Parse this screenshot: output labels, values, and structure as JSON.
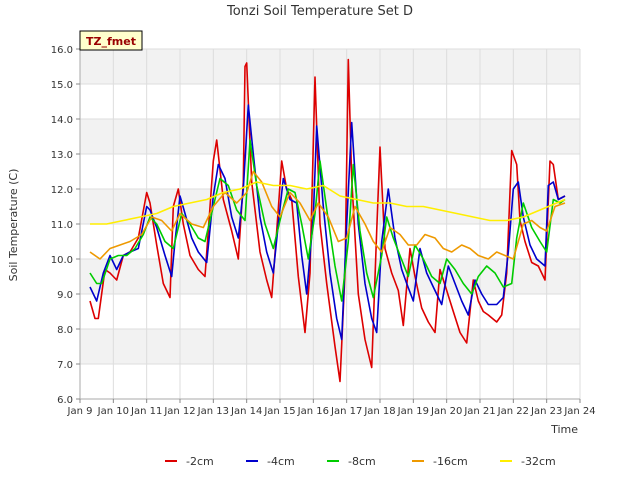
{
  "chart_data": {
    "type": "line",
    "title": "Tonzi Soil Temperature Set D",
    "xlabel": "Time",
    "ylabel": "Soil Temperature (C)",
    "badge": "TZ_fmet",
    "xlim": [
      9,
      24
    ],
    "ylim": [
      6.0,
      16.0
    ],
    "x_ticks": [
      9,
      10,
      11,
      12,
      13,
      14,
      15,
      16,
      17,
      18,
      19,
      20,
      21,
      22,
      23,
      24
    ],
    "x_tick_labels": [
      "Jan 9",
      "Jan 10",
      "Jan 11",
      "Jan 12",
      "Jan 13",
      "Jan 14",
      "Jan 15",
      "Jan 16",
      "Jan 17",
      "Jan 18",
      "Jan 19",
      "Jan 20",
      "Jan 21",
      "Jan 22",
      "Jan 23",
      "Jan 24"
    ],
    "y_ticks": [
      6,
      7,
      8,
      9,
      10,
      11,
      12,
      13,
      14,
      15,
      16
    ],
    "y_tick_labels": [
      "6.0",
      "7.0",
      "8.0",
      "9.0",
      "10.0",
      "11.0",
      "12.0",
      "13.0",
      "14.0",
      "15.0",
      "16.0"
    ],
    "legend_position": "bottom",
    "series": [
      {
        "name": "-2cm",
        "color": "#dd0000",
        "x": [
          9.3,
          9.45,
          9.55,
          9.75,
          9.9,
          10.1,
          10.3,
          10.5,
          10.75,
          11.0,
          11.1,
          11.3,
          11.5,
          11.7,
          11.8,
          11.95,
          12.1,
          12.3,
          12.55,
          12.75,
          13.0,
          13.1,
          13.3,
          13.55,
          13.75,
          13.9,
          13.95,
          14.0,
          14.15,
          14.4,
          14.6,
          14.75,
          14.9,
          15.05,
          15.2,
          15.35,
          15.55,
          15.75,
          15.9,
          16.05,
          16.2,
          16.4,
          16.65,
          16.8,
          16.95,
          17.05,
          17.15,
          17.35,
          17.55,
          17.75,
          17.9,
          18.0,
          18.15,
          18.35,
          18.55,
          18.7,
          18.9,
          19.05,
          19.25,
          19.45,
          19.65,
          19.8,
          20.0,
          20.2,
          20.4,
          20.6,
          20.8,
          20.95,
          21.1,
          21.25,
          21.5,
          21.65,
          21.8,
          21.95,
          22.1,
          22.2,
          22.35,
          22.55,
          22.75,
          22.95,
          23.1,
          23.2,
          23.35,
          23.55
        ],
        "values": [
          8.8,
          8.3,
          8.3,
          9.7,
          9.6,
          9.4,
          10.1,
          10.2,
          10.6,
          11.9,
          11.6,
          10.4,
          9.3,
          8.9,
          11.5,
          12.0,
          11.0,
          10.1,
          9.7,
          9.5,
          12.8,
          13.4,
          11.7,
          10.8,
          10.0,
          12.2,
          15.5,
          15.6,
          12.2,
          10.2,
          9.4,
          8.9,
          10.8,
          12.8,
          12.0,
          11.7,
          9.5,
          7.9,
          9.6,
          15.2,
          11.0,
          9.3,
          7.5,
          6.5,
          9.6,
          15.7,
          12.3,
          9.0,
          7.7,
          6.9,
          10.8,
          13.2,
          10.3,
          9.6,
          9.1,
          8.1,
          10.3,
          9.5,
          8.6,
          8.2,
          7.9,
          9.7,
          9.1,
          8.5,
          7.9,
          7.6,
          9.4,
          8.8,
          8.5,
          8.4,
          8.2,
          8.4,
          9.6,
          13.1,
          12.7,
          11.1,
          10.5,
          9.9,
          9.8,
          9.4,
          12.8,
          12.7,
          11.7,
          11.8
        ]
      },
      {
        "name": "-4cm",
        "color": "#0000cc",
        "x": [
          9.3,
          9.5,
          9.7,
          9.9,
          10.1,
          10.3,
          10.5,
          10.75,
          11.0,
          11.1,
          11.3,
          11.55,
          11.75,
          11.85,
          12.0,
          12.15,
          12.35,
          12.55,
          12.8,
          13.0,
          13.15,
          13.35,
          13.55,
          13.75,
          13.9,
          14.05,
          14.2,
          14.4,
          14.6,
          14.8,
          14.95,
          15.1,
          15.3,
          15.5,
          15.65,
          15.8,
          16.0,
          16.1,
          16.3,
          16.5,
          16.7,
          16.85,
          17.0,
          17.15,
          17.35,
          17.55,
          17.75,
          17.9,
          18.05,
          18.25,
          18.45,
          18.65,
          18.8,
          19.0,
          19.2,
          19.4,
          19.6,
          19.85,
          20.05,
          20.25,
          20.45,
          20.65,
          20.85,
          21.05,
          21.25,
          21.5,
          21.7,
          21.85,
          22.0,
          22.15,
          22.3,
          22.5,
          22.7,
          22.95,
          23.05,
          23.2,
          23.35,
          23.55
        ],
        "values": [
          9.2,
          8.8,
          9.6,
          10.1,
          9.7,
          10.1,
          10.2,
          10.3,
          11.5,
          11.4,
          10.9,
          10.1,
          9.5,
          10.5,
          11.8,
          11.3,
          10.6,
          10.2,
          9.9,
          11.8,
          12.7,
          12.3,
          11.2,
          10.6,
          12.0,
          14.4,
          13.0,
          11.2,
          10.2,
          9.6,
          11.0,
          12.3,
          11.7,
          11.6,
          10.1,
          9.0,
          11.2,
          13.8,
          11.5,
          9.6,
          8.3,
          7.7,
          11.0,
          13.9,
          11.0,
          9.3,
          8.3,
          7.9,
          10.5,
          12.0,
          10.6,
          9.7,
          9.3,
          8.8,
          10.3,
          9.6,
          9.2,
          8.7,
          9.8,
          9.3,
          8.8,
          8.4,
          9.4,
          9.0,
          8.7,
          8.7,
          8.9,
          10.2,
          12.0,
          12.2,
          11.2,
          10.4,
          10.0,
          9.8,
          12.1,
          12.2,
          11.7,
          11.8
        ]
      },
      {
        "name": "-8cm",
        "color": "#00cc00",
        "x": [
          9.3,
          9.5,
          9.65,
          9.9,
          10.15,
          10.4,
          10.65,
          10.9,
          11.1,
          11.3,
          11.55,
          11.8,
          12.05,
          12.3,
          12.55,
          12.75,
          13.0,
          13.2,
          13.45,
          13.7,
          13.95,
          14.1,
          14.3,
          14.55,
          14.8,
          15.05,
          15.25,
          15.45,
          15.65,
          15.85,
          16.05,
          16.2,
          16.45,
          16.65,
          16.85,
          17.05,
          17.2,
          17.4,
          17.6,
          17.8,
          18.05,
          18.2,
          18.4,
          18.6,
          18.85,
          19.05,
          19.3,
          19.55,
          19.8,
          20.0,
          20.25,
          20.5,
          20.75,
          20.95,
          21.2,
          21.45,
          21.7,
          21.95,
          22.1,
          22.3,
          22.55,
          22.8,
          23.0,
          23.2,
          23.4,
          23.55
        ],
        "values": [
          9.6,
          9.3,
          9.3,
          10.0,
          10.1,
          10.1,
          10.3,
          10.7,
          11.2,
          11.0,
          10.5,
          10.3,
          11.3,
          11.0,
          10.6,
          10.5,
          11.5,
          12.3,
          12.1,
          11.4,
          11.1,
          13.4,
          12.1,
          11.0,
          10.3,
          11.3,
          12.0,
          11.9,
          11.0,
          10.0,
          11.3,
          12.8,
          11.1,
          9.8,
          8.8,
          10.5,
          12.7,
          10.8,
          9.6,
          8.9,
          10.1,
          11.2,
          10.6,
          10.1,
          9.5,
          10.4,
          10.0,
          9.5,
          9.3,
          10.0,
          9.7,
          9.3,
          9.0,
          9.5,
          9.8,
          9.6,
          9.2,
          9.3,
          10.6,
          11.6,
          10.9,
          10.5,
          10.2,
          11.7,
          11.6,
          11.7
        ]
      },
      {
        "name": "-16cm",
        "color": "#ee9900",
        "x": [
          9.3,
          9.6,
          9.9,
          10.2,
          10.5,
          10.85,
          11.15,
          11.45,
          11.75,
          12.0,
          12.35,
          12.7,
          13.0,
          13.35,
          13.7,
          14.0,
          14.2,
          14.45,
          14.75,
          15.0,
          15.3,
          15.6,
          15.9,
          16.15,
          16.45,
          16.75,
          17.0,
          17.25,
          17.55,
          17.8,
          18.05,
          18.3,
          18.6,
          18.85,
          19.1,
          19.35,
          19.65,
          19.9,
          20.15,
          20.45,
          20.7,
          20.95,
          21.25,
          21.5,
          21.75,
          22.0,
          22.3,
          22.55,
          22.8,
          23.0,
          23.25,
          23.55
        ],
        "values": [
          10.2,
          10.0,
          10.3,
          10.4,
          10.5,
          10.7,
          11.2,
          11.1,
          10.8,
          11.3,
          11.0,
          10.9,
          11.5,
          11.9,
          11.6,
          11.9,
          12.5,
          12.2,
          11.5,
          11.2,
          11.9,
          11.6,
          11.1,
          11.6,
          11.2,
          10.5,
          10.6,
          11.5,
          11.0,
          10.5,
          10.2,
          10.9,
          10.7,
          10.4,
          10.4,
          10.7,
          10.6,
          10.3,
          10.2,
          10.4,
          10.3,
          10.1,
          10.0,
          10.2,
          10.1,
          10.0,
          11.0,
          11.1,
          10.9,
          10.8,
          11.5,
          11.6
        ]
      },
      {
        "name": "-32cm",
        "color": "#ffee00",
        "x": [
          9.3,
          9.8,
          10.3,
          10.8,
          11.3,
          11.8,
          12.3,
          12.8,
          13.3,
          13.8,
          14.3,
          14.8,
          15.3,
          15.8,
          16.3,
          16.8,
          17.3,
          17.8,
          18.3,
          18.8,
          19.3,
          19.8,
          20.3,
          20.8,
          21.3,
          21.8,
          22.3,
          22.8,
          23.3,
          23.55
        ],
        "values": [
          11.0,
          11.0,
          11.1,
          11.2,
          11.3,
          11.5,
          11.6,
          11.7,
          11.9,
          12.0,
          12.2,
          12.1,
          12.1,
          12.0,
          12.1,
          11.8,
          11.7,
          11.6,
          11.6,
          11.5,
          11.5,
          11.4,
          11.3,
          11.2,
          11.1,
          11.1,
          11.2,
          11.4,
          11.6,
          11.7
        ]
      }
    ]
  }
}
